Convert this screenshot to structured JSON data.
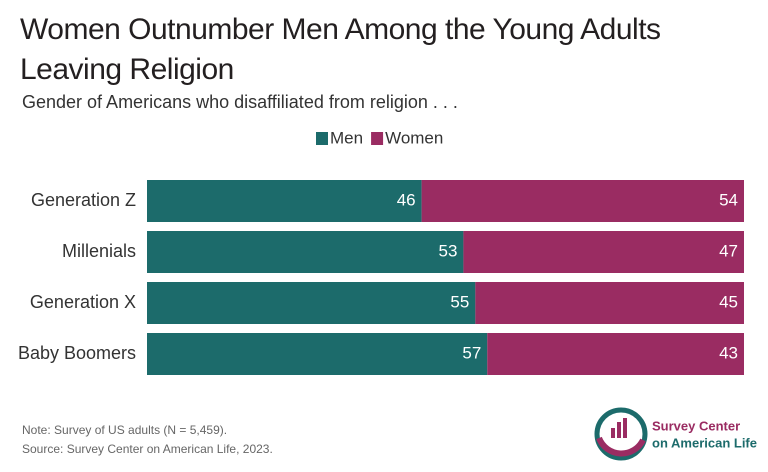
{
  "chart_data": {
    "type": "stacked-bar-horizontal",
    "title": "Women Outnumber Men Among the Young Adults Leaving Religion",
    "subtitle": "Gender of Americans who disaffiliated from religion . . .",
    "categories": [
      "Generation Z",
      "Millenials",
      "Generation X",
      "Baby Boomers"
    ],
    "series": [
      {
        "name": "Men",
        "color": "#1c6b6b",
        "values": [
          46,
          53,
          55,
          57
        ]
      },
      {
        "name": "Women",
        "color": "#9a2c62",
        "values": [
          54,
          47,
          45,
          43
        ]
      }
    ],
    "xlim": [
      0,
      100
    ],
    "legend": "top",
    "note": "Note: Survey of US adults (N = 5,459).",
    "source": "Source: Survey Center on American Life, 2023."
  },
  "logo": {
    "line1": "Survey Center",
    "line2": "on American Life"
  }
}
